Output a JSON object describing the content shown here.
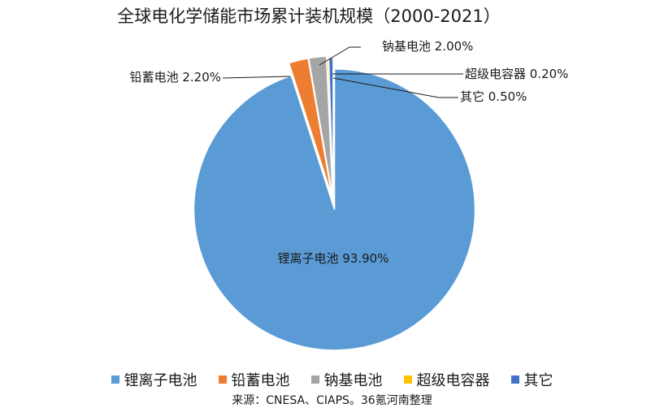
{
  "chart_data": {
    "type": "pie",
    "title": "全球电化学储能市场累计装机规模（2000-2021）",
    "slices": [
      {
        "name": "锂离子电池",
        "value": 93.9,
        "label": "锂离子电池 93.90%",
        "color": "#5b9bd5"
      },
      {
        "name": "铅蓄电池",
        "value": 2.2,
        "label": "铅蓄电池 2.20%",
        "color": "#ed7d31"
      },
      {
        "name": "钠基电池",
        "value": 2.0,
        "label": "钠基电池 2.00%",
        "color": "#a5a5a5"
      },
      {
        "name": "超级电容器",
        "value": 0.2,
        "label": "超级电容器 0.20%",
        "color": "#ffc000"
      },
      {
        "name": "其它",
        "value": 0.5,
        "label": "其它 0.50%",
        "color": "#4472c4"
      }
    ],
    "legend_position": "bottom"
  },
  "source": "来源：CNESA、CIAPS。36氪河南整理"
}
